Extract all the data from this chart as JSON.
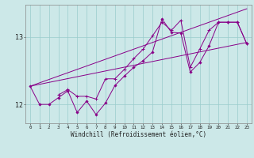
{
  "xlabel": "Windchill (Refroidissement éolien,°C)",
  "background_color": "#cce8e8",
  "line_color": "#880088",
  "grid_color": "#99cccc",
  "x": [
    0,
    1,
    2,
    3,
    4,
    5,
    6,
    7,
    8,
    9,
    10,
    11,
    12,
    13,
    14,
    15,
    16,
    17,
    18,
    19,
    20,
    21,
    22,
    23
  ],
  "yticks": [
    12,
    13
  ],
  "ylim": [
    11.72,
    13.48
  ],
  "xlim": [
    -0.5,
    23.5
  ],
  "line_diamond": [
    12.27,
    12.0,
    12.0,
    12.1,
    12.2,
    11.88,
    12.05,
    11.85,
    12.02,
    12.28,
    12.42,
    12.55,
    12.65,
    12.78,
    13.27,
    13.07,
    13.06,
    12.48,
    12.62,
    12.87,
    13.22,
    13.22,
    13.22,
    12.9
  ],
  "line_plus_x": [
    3,
    4,
    5,
    6,
    7,
    8,
    9,
    10,
    11,
    12,
    13,
    14,
    15,
    16,
    17,
    18,
    19,
    20,
    21,
    22,
    23
  ],
  "line_plus": [
    12.14,
    12.22,
    12.12,
    12.12,
    12.08,
    12.38,
    12.38,
    12.52,
    12.68,
    12.82,
    13.02,
    13.22,
    13.1,
    13.25,
    12.55,
    12.82,
    13.1,
    13.22,
    13.22,
    13.22,
    12.9
  ],
  "trend1": [
    12.27,
    13.42
  ],
  "trend2": [
    12.27,
    12.92
  ]
}
